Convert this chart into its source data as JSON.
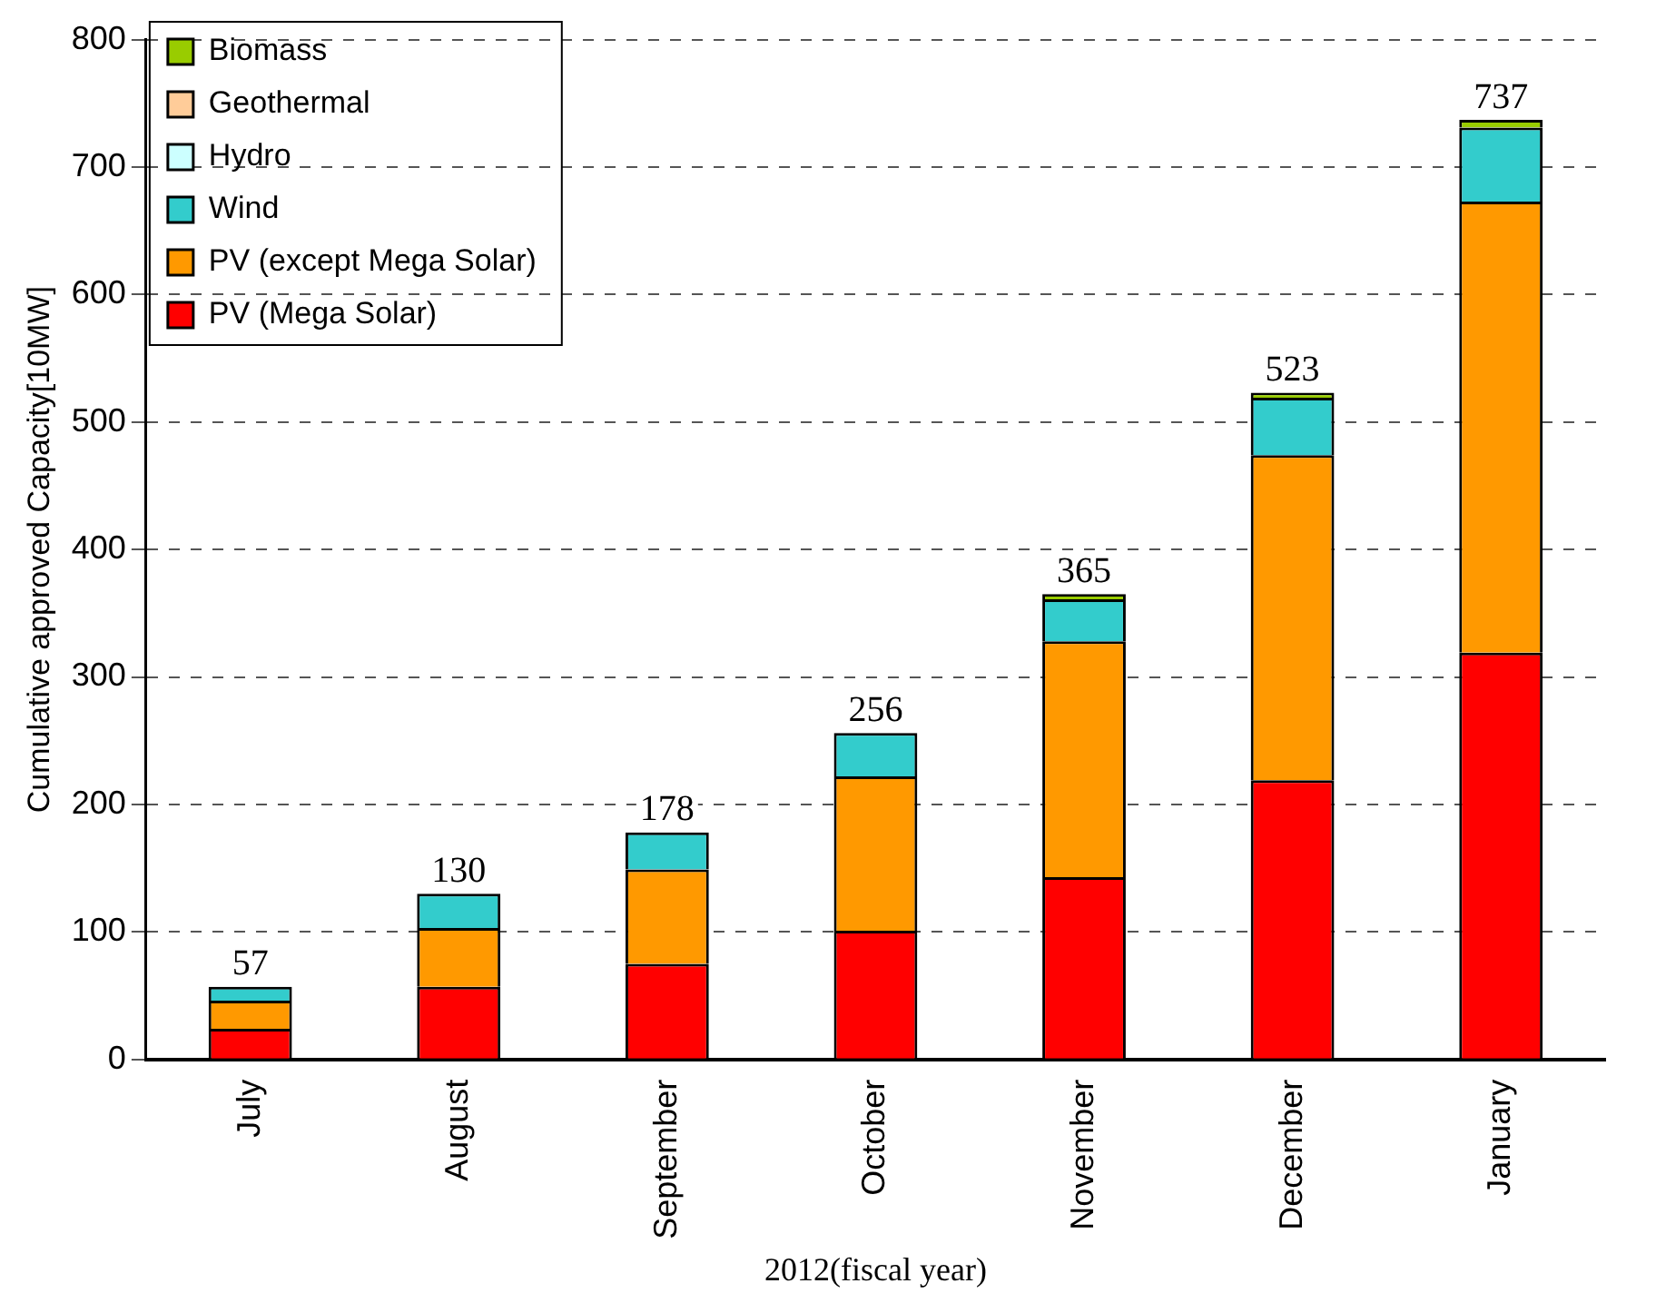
{
  "chart_data": {
    "type": "bar",
    "stacked": true,
    "xlabel": "2012(fiscal year)",
    "ylabel": "Cumulative approved Capacity[10MW]",
    "categories": [
      "July",
      "August",
      "September",
      "October",
      "November",
      "December",
      "January"
    ],
    "series": [
      {
        "name": "PV (Mega Solar)",
        "color": "#ff0000",
        "values": [
          24,
          57,
          75,
          101,
          143,
          219,
          319
        ]
      },
      {
        "name": "PV (except Mega Solar)",
        "color": "#ff9900",
        "values": [
          22,
          46,
          74,
          121,
          185,
          255,
          354
        ]
      },
      {
        "name": "Wind",
        "color": "#33cccc",
        "values": [
          11,
          27,
          29,
          34,
          33,
          45,
          58
        ]
      },
      {
        "name": "Hydro",
        "color": "#ccffff",
        "values": [
          0,
          0,
          0,
          0,
          0,
          0,
          0
        ]
      },
      {
        "name": "Geothermal",
        "color": "#ffcc99",
        "values": [
          0,
          0,
          0,
          0,
          0,
          0,
          0
        ]
      },
      {
        "name": "Biomass",
        "color": "#99cc00",
        "values": [
          0,
          0,
          0,
          0,
          4,
          4,
          6
        ]
      }
    ],
    "totals": [
      "57",
      "130",
      "178",
      "256",
      "365",
      "523",
      "737"
    ],
    "ylim": [
      0,
      800
    ],
    "yticks": [
      0,
      100,
      200,
      300,
      400,
      500,
      600,
      700,
      800
    ],
    "grid": "y",
    "legend": "top left"
  }
}
